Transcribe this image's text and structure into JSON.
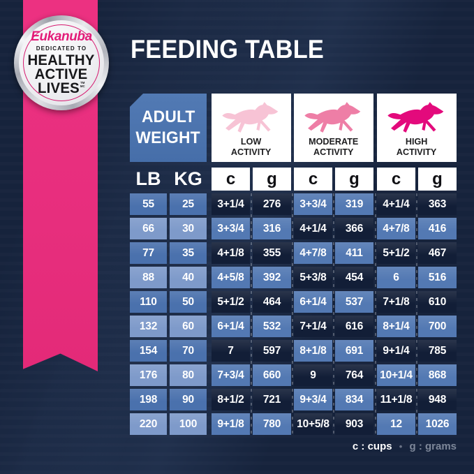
{
  "title": "FEEDING TABLE",
  "badge": {
    "brand": "Eukanuba",
    "tagline": "DEDICATED TO",
    "line1": "HEALTHY",
    "line2": "ACTIVE",
    "line3": "LIVES",
    "tm": "TM",
    "mc": "MC"
  },
  "header": {
    "corner_line1": "ADULT",
    "corner_line2": "WEIGHT",
    "activities": [
      {
        "line1": "LOW",
        "line2": "ACTIVITY",
        "dog_color": "#f7c3d5"
      },
      {
        "line1": "MODERATE",
        "line2": "ACTIVITY",
        "dog_color": "#ee7ea6"
      },
      {
        "line1": "HIGH",
        "line2": "ACTIVITY",
        "dog_color": "#e30a7c"
      }
    ]
  },
  "units": {
    "lb": "LB",
    "kg": "KG",
    "cups": "c",
    "grams": "g"
  },
  "rows": [
    {
      "lb": "55",
      "kg": "25",
      "values": [
        "3+1/4",
        "276",
        "3+3/4",
        "319",
        "4+1/4",
        "363"
      ]
    },
    {
      "lb": "66",
      "kg": "30",
      "values": [
        "3+3/4",
        "316",
        "4+1/4",
        "366",
        "4+7/8",
        "416"
      ]
    },
    {
      "lb": "77",
      "kg": "35",
      "values": [
        "4+1/8",
        "355",
        "4+7/8",
        "411",
        "5+1/2",
        "467"
      ]
    },
    {
      "lb": "88",
      "kg": "40",
      "values": [
        "4+5/8",
        "392",
        "5+3/8",
        "454",
        "6",
        "516"
      ]
    },
    {
      "lb": "110",
      "kg": "50",
      "values": [
        "5+1/2",
        "464",
        "6+1/4",
        "537",
        "7+1/8",
        "610"
      ]
    },
    {
      "lb": "132",
      "kg": "60",
      "values": [
        "6+1/4",
        "532",
        "7+1/4",
        "616",
        "8+1/4",
        "700"
      ]
    },
    {
      "lb": "154",
      "kg": "70",
      "values": [
        "7",
        "597",
        "8+1/8",
        "691",
        "9+1/4",
        "785"
      ]
    },
    {
      "lb": "176",
      "kg": "80",
      "values": [
        "7+3/4",
        "660",
        "9",
        "764",
        "10+1/4",
        "868"
      ]
    },
    {
      "lb": "198",
      "kg": "90",
      "values": [
        "8+1/2",
        "721",
        "9+3/4",
        "834",
        "11+1/8",
        "948"
      ]
    },
    {
      "lb": "220",
      "kg": "100",
      "values": [
        "9+1/8",
        "780",
        "10+5/8",
        "903",
        "12",
        "1026"
      ]
    }
  ],
  "legend": {
    "cups": "c : cups",
    "separator": "•",
    "grams": "g : grams"
  },
  "colors": {
    "background": "#16233c",
    "ribbon_pink": "#e72e7d",
    "brand_pink": "#e31c79",
    "corner_blue": "#4a72ae",
    "cell_dark": "#121e37",
    "cell_medium": "#5379b3",
    "weight_odd": "#4a71ad",
    "weight_even": "#7e9aca",
    "legend_gray": "#7d8799"
  },
  "chart_data": {
    "type": "table",
    "title": "FEEDING TABLE",
    "columns": [
      "Adult Weight LB",
      "Adult Weight KG",
      "Low Activity c (cups)",
      "Low Activity g (grams)",
      "Moderate Activity c (cups)",
      "Moderate Activity g (grams)",
      "High Activity c (cups)",
      "High Activity g (grams)"
    ],
    "rows": [
      [
        "55",
        "25",
        "3+1/4",
        "276",
        "3+3/4",
        "319",
        "4+1/4",
        "363"
      ],
      [
        "66",
        "30",
        "3+3/4",
        "316",
        "4+1/4",
        "366",
        "4+7/8",
        "416"
      ],
      [
        "77",
        "35",
        "4+1/8",
        "355",
        "4+7/8",
        "411",
        "5+1/2",
        "467"
      ],
      [
        "88",
        "40",
        "4+5/8",
        "392",
        "5+3/8",
        "454",
        "6",
        "516"
      ],
      [
        "110",
        "50",
        "5+1/2",
        "464",
        "6+1/4",
        "537",
        "7+1/8",
        "610"
      ],
      [
        "132",
        "60",
        "6+1/4",
        "532",
        "7+1/4",
        "616",
        "8+1/4",
        "700"
      ],
      [
        "154",
        "70",
        "7",
        "597",
        "8+1/8",
        "691",
        "9+1/4",
        "785"
      ],
      [
        "176",
        "80",
        "7+3/4",
        "660",
        "9",
        "764",
        "10+1/4",
        "868"
      ],
      [
        "198",
        "90",
        "8+1/2",
        "721",
        "9+3/4",
        "834",
        "11+1/8",
        "948"
      ],
      [
        "220",
        "100",
        "9+1/8",
        "780",
        "10+5/8",
        "903",
        "12",
        "1026"
      ]
    ],
    "legend": [
      "c : cups",
      "g : grams"
    ]
  }
}
